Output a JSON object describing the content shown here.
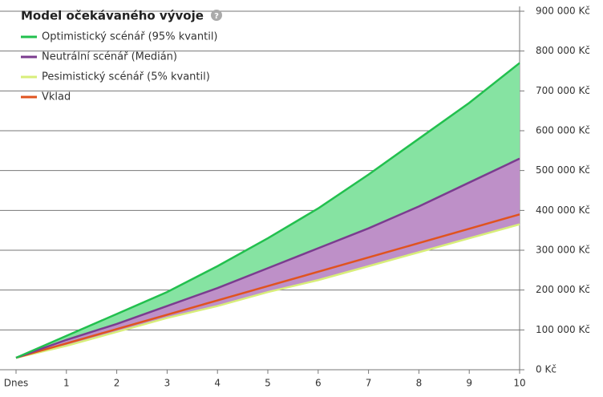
{
  "chart_data": {
    "type": "line",
    "title": "Model očekávaného vývoje",
    "categories": [
      "Dnes",
      "1",
      "2",
      "3",
      "4",
      "5",
      "6",
      "7",
      "8",
      "9",
      "10"
    ],
    "series": [
      {
        "name": "Optimistický scénář (95% kvantil)",
        "color": "#22c04e",
        "values": [
          30000,
          85000,
          140000,
          195000,
          260000,
          330000,
          405000,
          490000,
          580000,
          670000,
          770000
        ]
      },
      {
        "name": "Neutrální scénář (Medián)",
        "color": "#7b3c8f",
        "values": [
          30000,
          75000,
          115000,
          160000,
          205000,
          255000,
          305000,
          355000,
          410000,
          470000,
          530000
        ]
      },
      {
        "name": "Pesimistický scénář (5% kvantil)",
        "color": "#d8ee7a",
        "values": [
          30000,
          60000,
          95000,
          130000,
          160000,
          195000,
          225000,
          260000,
          295000,
          330000,
          365000
        ]
      },
      {
        "name": "Vklad",
        "color": "#e0531f",
        "values": [
          30000,
          66000,
          102000,
          138000,
          174000,
          210000,
          246000,
          282000,
          318000,
          354000,
          390000
        ]
      }
    ],
    "band_colors": [
      "#86e3a2",
      "#be90c8"
    ],
    "ylim": [
      0,
      900000
    ],
    "yticks": [
      {
        "value": 0,
        "label": "0 Kč"
      },
      {
        "value": 100000,
        "label": "100 000 Kč"
      },
      {
        "value": 200000,
        "label": "200 000 Kč"
      },
      {
        "value": 300000,
        "label": "300 000 Kč"
      },
      {
        "value": 400000,
        "label": "400 000 Kč"
      },
      {
        "value": 500000,
        "label": "500 000 Kč"
      },
      {
        "value": 600000,
        "label": "600 000 Kč"
      },
      {
        "value": 700000,
        "label": "700 000 Kč"
      },
      {
        "value": 800000,
        "label": "800 000 Kč"
      },
      {
        "value": 900000,
        "label": "900 000 Kč"
      }
    ],
    "grid": true
  }
}
